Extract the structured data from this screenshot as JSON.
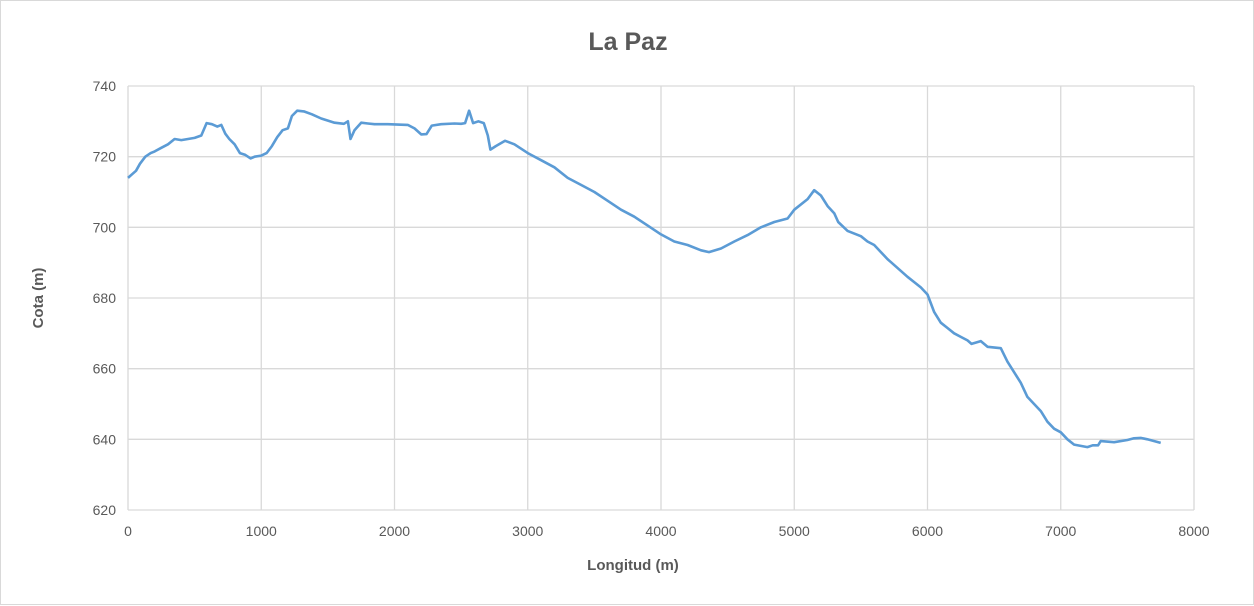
{
  "chart_data": {
    "type": "line",
    "title": "La Paz",
    "xlabel": "Longitud (m)",
    "ylabel": "Cota (m)",
    "xlim": [
      0,
      8000
    ],
    "ylim": [
      620,
      740
    ],
    "xticks": [
      0,
      1000,
      2000,
      3000,
      4000,
      5000,
      6000,
      7000,
      8000
    ],
    "yticks": [
      620,
      640,
      660,
      680,
      700,
      720,
      740
    ],
    "grid": true,
    "legend": "none",
    "series": [
      {
        "name": "La Paz",
        "color": "#5b9bd5",
        "points": [
          [
            0,
            714
          ],
          [
            30,
            715
          ],
          [
            60,
            716
          ],
          [
            90,
            718
          ],
          [
            130,
            720
          ],
          [
            170,
            721
          ],
          [
            200,
            721.5
          ],
          [
            250,
            722.5
          ],
          [
            300,
            723.5
          ],
          [
            350,
            725
          ],
          [
            400,
            724.7
          ],
          [
            450,
            725
          ],
          [
            500,
            725.3
          ],
          [
            550,
            726
          ],
          [
            590,
            729.5
          ],
          [
            630,
            729.2
          ],
          [
            670,
            728.5
          ],
          [
            700,
            729
          ],
          [
            730,
            726.5
          ],
          [
            760,
            725
          ],
          [
            800,
            723.5
          ],
          [
            840,
            721
          ],
          [
            880,
            720.5
          ],
          [
            920,
            719.5
          ],
          [
            950,
            720
          ],
          [
            1000,
            720.3
          ],
          [
            1040,
            721
          ],
          [
            1080,
            723
          ],
          [
            1120,
            725.5
          ],
          [
            1160,
            727.5
          ],
          [
            1200,
            728
          ],
          [
            1230,
            731.5
          ],
          [
            1270,
            733
          ],
          [
            1320,
            732.8
          ],
          [
            1380,
            732
          ],
          [
            1450,
            730.8
          ],
          [
            1500,
            730.2
          ],
          [
            1550,
            729.6
          ],
          [
            1620,
            729.3
          ],
          [
            1650,
            730
          ],
          [
            1670,
            725
          ],
          [
            1700,
            727.5
          ],
          [
            1750,
            729.6
          ],
          [
            1800,
            729.4
          ],
          [
            1850,
            729.2
          ],
          [
            1950,
            729.2
          ],
          [
            2100,
            729
          ],
          [
            2150,
            728
          ],
          [
            2200,
            726.3
          ],
          [
            2240,
            726.4
          ],
          [
            2280,
            728.8
          ],
          [
            2350,
            729.2
          ],
          [
            2450,
            729.4
          ],
          [
            2500,
            729.3
          ],
          [
            2530,
            729.5
          ],
          [
            2560,
            733
          ],
          [
            2590,
            729.5
          ],
          [
            2630,
            730
          ],
          [
            2670,
            729.5
          ],
          [
            2700,
            726
          ],
          [
            2720,
            722
          ],
          [
            2760,
            723
          ],
          [
            2830,
            724.5
          ],
          [
            2900,
            723.5
          ],
          [
            3000,
            721
          ],
          [
            3100,
            719
          ],
          [
            3200,
            717
          ],
          [
            3300,
            714
          ],
          [
            3400,
            712
          ],
          [
            3500,
            710
          ],
          [
            3600,
            707.5
          ],
          [
            3700,
            705
          ],
          [
            3800,
            703
          ],
          [
            3900,
            700.5
          ],
          [
            4000,
            698
          ],
          [
            4100,
            696
          ],
          [
            4200,
            695
          ],
          [
            4300,
            693.5
          ],
          [
            4360,
            693
          ],
          [
            4450,
            694
          ],
          [
            4550,
            696
          ],
          [
            4650,
            697.8
          ],
          [
            4750,
            700
          ],
          [
            4850,
            701.5
          ],
          [
            4950,
            702.5
          ],
          [
            5000,
            705
          ],
          [
            5100,
            708
          ],
          [
            5150,
            710.5
          ],
          [
            5200,
            709
          ],
          [
            5250,
            706
          ],
          [
            5300,
            704
          ],
          [
            5330,
            701.5
          ],
          [
            5400,
            699
          ],
          [
            5500,
            697.5
          ],
          [
            5550,
            696
          ],
          [
            5600,
            695
          ],
          [
            5650,
            693
          ],
          [
            5700,
            691
          ],
          [
            5760,
            689
          ],
          [
            5850,
            686
          ],
          [
            5900,
            684.5
          ],
          [
            5950,
            683
          ],
          [
            6000,
            681
          ],
          [
            6050,
            676
          ],
          [
            6100,
            673
          ],
          [
            6150,
            671.5
          ],
          [
            6200,
            670
          ],
          [
            6250,
            669
          ],
          [
            6300,
            668
          ],
          [
            6330,
            667
          ],
          [
            6400,
            667.8
          ],
          [
            6450,
            666.2
          ],
          [
            6550,
            665.8
          ],
          [
            6600,
            662
          ],
          [
            6650,
            659
          ],
          [
            6700,
            656
          ],
          [
            6750,
            652
          ],
          [
            6800,
            650
          ],
          [
            6850,
            648
          ],
          [
            6900,
            645
          ],
          [
            6950,
            643
          ],
          [
            7000,
            642
          ],
          [
            7050,
            640
          ],
          [
            7100,
            638.5
          ],
          [
            7200,
            637.8
          ],
          [
            7240,
            638.3
          ],
          [
            7280,
            638.3
          ],
          [
            7300,
            639.5
          ],
          [
            7400,
            639.2
          ],
          [
            7500,
            639.8
          ],
          [
            7550,
            640.3
          ],
          [
            7600,
            640.4
          ],
          [
            7650,
            640
          ],
          [
            7750,
            639
          ]
        ]
      }
    ]
  }
}
